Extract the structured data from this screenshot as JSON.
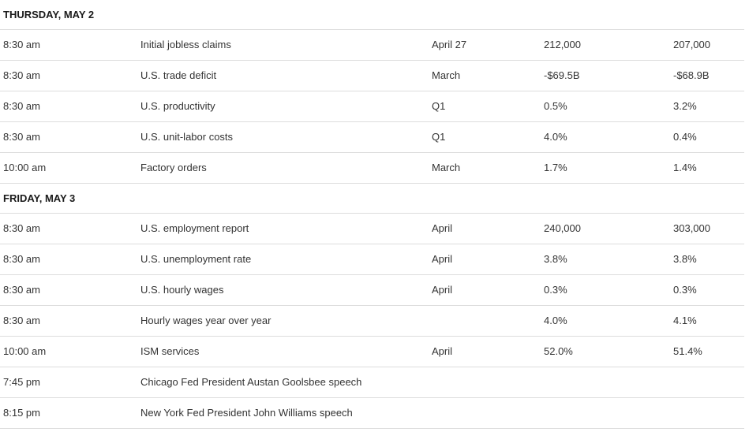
{
  "days": [
    {
      "header": "THURSDAY, MAY 2",
      "rows": [
        {
          "time": "8:30 am",
          "event": "Initial jobless claims",
          "period": "April 27",
          "forecast": "212,000",
          "previous": "207,000"
        },
        {
          "time": "8:30 am",
          "event": "U.S. trade deficit",
          "period": "March",
          "forecast": "-$69.5B",
          "previous": "-$68.9B"
        },
        {
          "time": "8:30 am",
          "event": "U.S. productivity",
          "period": "Q1",
          "forecast": "0.5%",
          "previous": "3.2%"
        },
        {
          "time": "8:30 am",
          "event": "U.S. unit-labor costs",
          "period": "Q1",
          "forecast": "4.0%",
          "previous": "0.4%"
        },
        {
          "time": "10:00 am",
          "event": "Factory orders",
          "period": "March",
          "forecast": "1.7%",
          "previous": "1.4%"
        }
      ]
    },
    {
      "header": "FRIDAY, MAY 3",
      "rows": [
        {
          "time": "8:30 am",
          "event": "U.S. employment report",
          "period": "April",
          "forecast": "240,000",
          "previous": "303,000"
        },
        {
          "time": "8:30 am",
          "event": "U.S. unemployment rate",
          "period": "April",
          "forecast": "3.8%",
          "previous": "3.8%"
        },
        {
          "time": "8:30 am",
          "event": "U.S. hourly wages",
          "period": "April",
          "forecast": "0.3%",
          "previous": "0.3%"
        },
        {
          "time": "8:30 am",
          "event": "Hourly wages year over year",
          "period": "",
          "forecast": "4.0%",
          "previous": "4.1%"
        },
        {
          "time": "10:00 am",
          "event": "ISM services",
          "period": "April",
          "forecast": "52.0%",
          "previous": "51.4%"
        },
        {
          "time": "7:45 pm",
          "event": "Chicago Fed President Austan Goolsbee speech",
          "period": "",
          "forecast": "",
          "previous": ""
        },
        {
          "time": "8:15 pm",
          "event": "New York Fed President John Williams speech",
          "period": "",
          "forecast": "",
          "previous": ""
        }
      ]
    }
  ]
}
